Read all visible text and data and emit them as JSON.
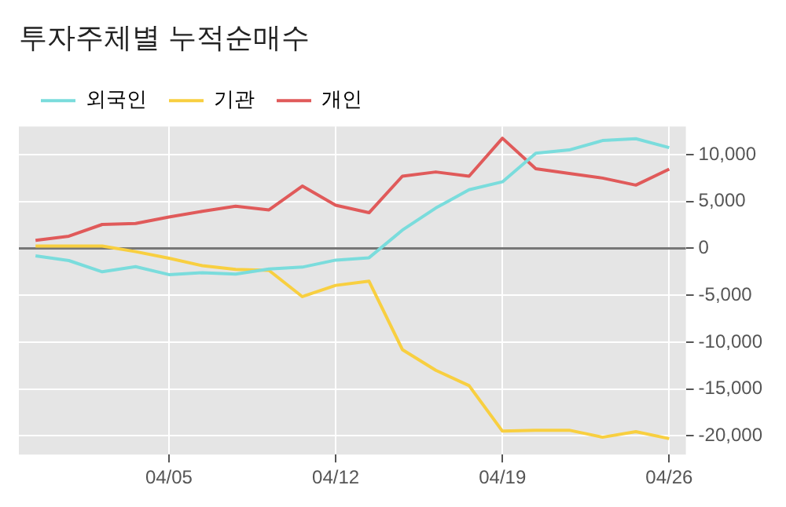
{
  "chart_data": {
    "type": "line",
    "title": "투자주체별 누적순매수",
    "categories": [
      null,
      null,
      null,
      null,
      "04/05",
      null,
      null,
      null,
      null,
      "04/12",
      null,
      null,
      null,
      null,
      "04/19",
      null,
      null,
      null,
      null,
      "04/26"
    ],
    "series": [
      {
        "name": "외국인",
        "color": "#7adcdc",
        "values": [
          -800,
          -1300,
          -2500,
          -1950,
          -2800,
          -2600,
          -2750,
          -2200,
          -2000,
          -1250,
          -1000,
          1950,
          4300,
          6250,
          7100,
          10150,
          10500,
          11500,
          11700,
          10750
        ]
      },
      {
        "name": "기관",
        "color": "#f8cf40",
        "values": [
          250,
          250,
          250,
          -350,
          -1050,
          -1850,
          -2250,
          -2350,
          -5150,
          -3950,
          -3500,
          -10800,
          -13000,
          -14650,
          -19500,
          -19400,
          -19400,
          -20150,
          -19550,
          -20300
        ]
      },
      {
        "name": "개인",
        "color": "#e05a5a",
        "values": [
          850,
          1300,
          2550,
          2650,
          3350,
          3950,
          4500,
          4100,
          6650,
          4600,
          3800,
          7700,
          8150,
          7700,
          11750,
          8500,
          8000,
          7500,
          6750,
          8450
        ]
      }
    ],
    "ylim": [
      -22000,
      13000
    ],
    "yticks": [
      {
        "value": -20000,
        "label": "-20,000"
      },
      {
        "value": -15000,
        "label": "-15,000"
      },
      {
        "value": -10000,
        "label": "-10,000"
      },
      {
        "value": -5000,
        "label": "-5,000"
      },
      0,
      {
        "value": 5000,
        "label": "5,000"
      },
      {
        "value": 10000,
        "label": "10,000"
      }
    ],
    "grid": true,
    "legend": "top left",
    "marker": "none",
    "line_style": "solid",
    "ref_lines": [
      {
        "axis": "y",
        "value": 0,
        "color": "#777777"
      }
    ]
  }
}
